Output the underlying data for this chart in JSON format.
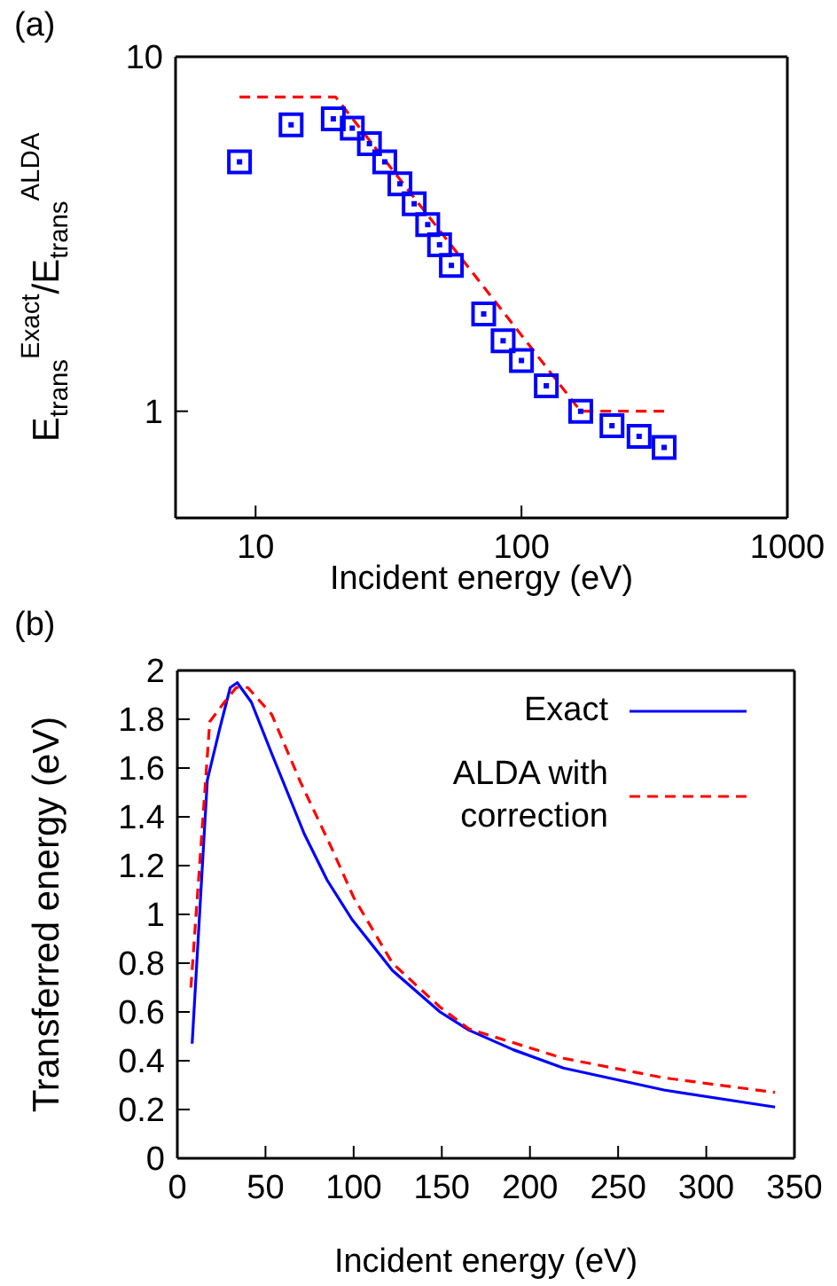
{
  "chart_data": [
    {
      "type": "scatter",
      "xlabel": "Incident energy (eV)",
      "ylabel": "E$_{trans}$$^{Exact}$/E$_{trans}$$^{ALDA}$",
      "log": "xy",
      "xlim": [
        5,
        1000
      ],
      "ylim": [
        0.5,
        10
      ],
      "xticks": [
        10,
        100,
        1000
      ],
      "yticks": [
        1,
        10
      ],
      "grid": false,
      "legend": false,
      "annotations": [
        "(a)"
      ],
      "series": [
        {
          "type": "scatter",
          "color": "#0000ff",
          "marker": "square",
          "x": [
            8.7,
            13.6,
            19.6,
            23.1,
            26.8,
            30.6,
            34.9,
            39.5,
            44.4,
            49.2,
            54.5,
            72.1,
            85.3,
            100,
            124,
            167,
            219,
            277,
            344
          ],
          "values": [
            5.05,
            6.43,
            6.68,
            6.29,
            5.69,
            5.05,
            4.38,
            3.85,
            3.36,
            2.95,
            2.58,
            1.88,
            1.58,
            1.39,
            1.18,
            1.0,
            0.91,
            0.85,
            0.79
          ]
        },
        {
          "type": "line",
          "color": "#ff0000",
          "line_style": "dashed",
          "marker": "none",
          "x": [
            8.7,
            20,
            167,
            344
          ],
          "values": [
            7.7,
            7.7,
            1.0,
            1.0
          ]
        }
      ]
    },
    {
      "type": "line",
      "xlabel": "Incident energy (eV)",
      "ylabel": "Transferred energy (eV)",
      "xlim": [
        0,
        350
      ],
      "ylim": [
        0,
        2
      ],
      "xticks": [
        0,
        50,
        100,
        150,
        200,
        250,
        300,
        350
      ],
      "yticks": [
        0,
        0.2,
        0.4,
        0.6,
        0.8,
        1,
        1.2,
        1.4,
        1.6,
        1.8,
        2
      ],
      "grid": false,
      "legend": "top right",
      "marker": "none",
      "annotations": [
        "(b)"
      ],
      "series": [
        {
          "name": "Exact",
          "color": "#0000ff",
          "line_style": "solid",
          "x": [
            8.4,
            17,
            24,
            30,
            34,
            42,
            53.5,
            72,
            85,
            99,
            122,
            149,
            165.5,
            190.6,
            219,
            276,
            339
          ],
          "values": [
            0.47,
            1.55,
            1.76,
            1.93,
            1.95,
            1.87,
            1.66,
            1.33,
            1.14,
            0.98,
            0.77,
            0.6,
            0.525,
            0.445,
            0.37,
            0.28,
            0.21
          ]
        },
        {
          "name": "ALDA with correction",
          "color": "#ff0000",
          "line_style": "dashed",
          "x": [
            7.7,
            18.4,
            26.7,
            33.4,
            40,
            53.5,
            70,
            87,
            100,
            122,
            149,
            165.5,
            219,
            276,
            339
          ],
          "values": [
            0.7,
            1.79,
            1.87,
            1.93,
            1.93,
            1.82,
            1.54,
            1.28,
            1.07,
            0.8,
            0.62,
            0.53,
            0.41,
            0.33,
            0.27
          ]
        }
      ]
    }
  ]
}
